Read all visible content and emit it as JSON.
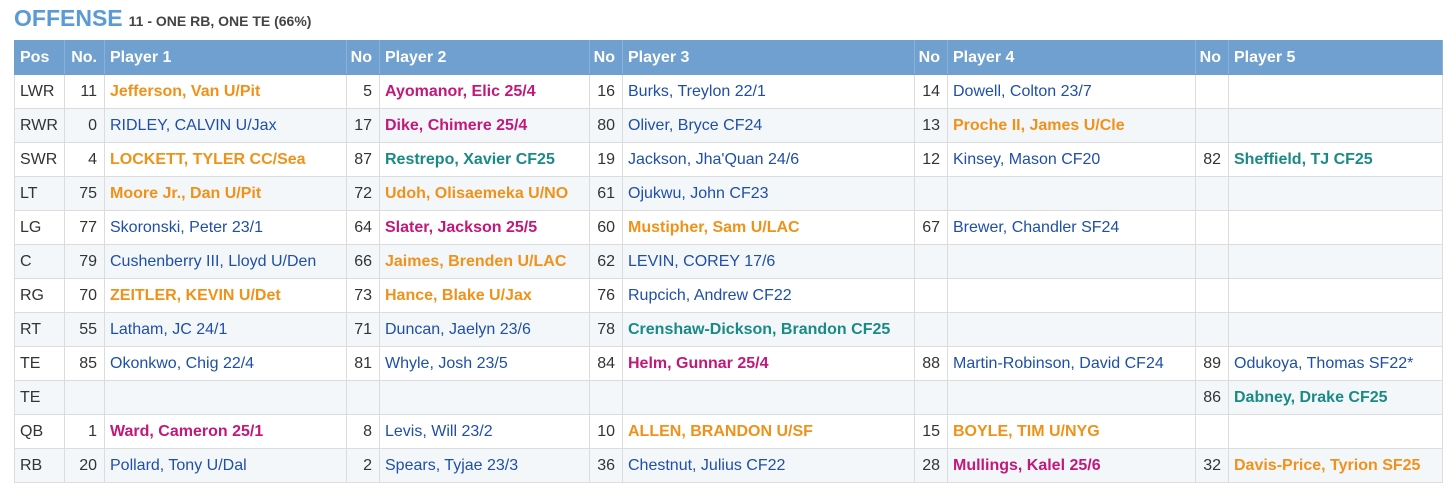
{
  "header": {
    "title": "OFFENSE",
    "subtitle": "11 - ONE RB, ONE TE (66%)"
  },
  "columns": [
    "Pos",
    "No.",
    "Player 1",
    "No",
    "Player 2",
    "No",
    "Player 3",
    "No",
    "Player 4",
    "No",
    "Player 5"
  ],
  "colors": {
    "blue": "#1f4fa8",
    "orange": "#f0921a",
    "magenta": "#c2187a",
    "teal": "#1a8a85",
    "header_bg": "#6fa0cf"
  },
  "rows": [
    {
      "pos": "LWR",
      "players": [
        {
          "no": "11",
          "name": "Jefferson, Van U/Pit",
          "color": "orange"
        },
        {
          "no": "5",
          "name": "Ayomanor, Elic 25/4",
          "color": "magenta"
        },
        {
          "no": "16",
          "name": "Burks, Treylon 22/1",
          "color": "blue"
        },
        {
          "no": "14",
          "name": "Dowell, Colton 23/7",
          "color": "blue"
        },
        {
          "no": "",
          "name": "",
          "color": "blue"
        }
      ]
    },
    {
      "pos": "RWR",
      "players": [
        {
          "no": "0",
          "name": "RIDLEY, CALVIN U/Jax",
          "color": "blue"
        },
        {
          "no": "17",
          "name": "Dike, Chimere 25/4",
          "color": "magenta"
        },
        {
          "no": "80",
          "name": "Oliver, Bryce CF24",
          "color": "blue"
        },
        {
          "no": "13",
          "name": "Proche II, James U/Cle",
          "color": "orange"
        },
        {
          "no": "",
          "name": "",
          "color": "blue"
        }
      ]
    },
    {
      "pos": "SWR",
      "players": [
        {
          "no": "4",
          "name": "LOCKETT, TYLER CC/Sea",
          "color": "orange"
        },
        {
          "no": "87",
          "name": "Restrepo, Xavier CF25",
          "color": "teal"
        },
        {
          "no": "19",
          "name": "Jackson, Jha'Quan 24/6",
          "color": "blue"
        },
        {
          "no": "12",
          "name": "Kinsey, Mason CF20",
          "color": "blue"
        },
        {
          "no": "82",
          "name": "Sheffield, TJ CF25",
          "color": "teal"
        }
      ]
    },
    {
      "pos": "LT",
      "players": [
        {
          "no": "75",
          "name": "Moore Jr., Dan U/Pit",
          "color": "orange"
        },
        {
          "no": "72",
          "name": "Udoh, Olisaemeka U/NO",
          "color": "orange"
        },
        {
          "no": "61",
          "name": "Ojukwu, John CF23",
          "color": "blue"
        },
        {
          "no": "",
          "name": "",
          "color": "blue"
        },
        {
          "no": "",
          "name": "",
          "color": "blue"
        }
      ]
    },
    {
      "pos": "LG",
      "players": [
        {
          "no": "77",
          "name": "Skoronski, Peter 23/1",
          "color": "blue"
        },
        {
          "no": "64",
          "name": "Slater, Jackson 25/5",
          "color": "magenta"
        },
        {
          "no": "60",
          "name": "Mustipher, Sam U/LAC",
          "color": "orange"
        },
        {
          "no": "67",
          "name": "Brewer, Chandler SF24",
          "color": "blue"
        },
        {
          "no": "",
          "name": "",
          "color": "blue"
        }
      ]
    },
    {
      "pos": "C",
      "players": [
        {
          "no": "79",
          "name": "Cushenberry III, Lloyd U/Den",
          "color": "blue"
        },
        {
          "no": "66",
          "name": "Jaimes, Brenden U/LAC",
          "color": "orange"
        },
        {
          "no": "62",
          "name": "LEVIN, COREY 17/6",
          "color": "blue"
        },
        {
          "no": "",
          "name": "",
          "color": "blue"
        },
        {
          "no": "",
          "name": "",
          "color": "blue"
        }
      ]
    },
    {
      "pos": "RG",
      "players": [
        {
          "no": "70",
          "name": "ZEITLER, KEVIN U/Det",
          "color": "orange"
        },
        {
          "no": "73",
          "name": "Hance, Blake U/Jax",
          "color": "orange"
        },
        {
          "no": "76",
          "name": "Rupcich, Andrew CF22",
          "color": "blue"
        },
        {
          "no": "",
          "name": "",
          "color": "blue"
        },
        {
          "no": "",
          "name": "",
          "color": "blue"
        }
      ]
    },
    {
      "pos": "RT",
      "players": [
        {
          "no": "55",
          "name": "Latham, JC 24/1",
          "color": "blue"
        },
        {
          "no": "71",
          "name": "Duncan, Jaelyn 23/6",
          "color": "blue"
        },
        {
          "no": "78",
          "name": "Crenshaw-Dickson, Brandon CF25",
          "color": "teal"
        },
        {
          "no": "",
          "name": "",
          "color": "blue"
        },
        {
          "no": "",
          "name": "",
          "color": "blue"
        }
      ]
    },
    {
      "pos": "TE",
      "players": [
        {
          "no": "85",
          "name": "Okonkwo, Chig 22/4",
          "color": "blue"
        },
        {
          "no": "81",
          "name": "Whyle, Josh 23/5",
          "color": "blue"
        },
        {
          "no": "84",
          "name": "Helm, Gunnar 25/4",
          "color": "magenta"
        },
        {
          "no": "88",
          "name": "Martin-Robinson, David CF24",
          "color": "blue"
        },
        {
          "no": "89",
          "name": "Odukoya, Thomas SF22*",
          "color": "blue"
        }
      ]
    },
    {
      "pos": "TE",
      "players": [
        {
          "no": "",
          "name": "",
          "color": "blue"
        },
        {
          "no": "",
          "name": "",
          "color": "blue"
        },
        {
          "no": "",
          "name": "",
          "color": "blue"
        },
        {
          "no": "",
          "name": "",
          "color": "blue"
        },
        {
          "no": "86",
          "name": "Dabney, Drake CF25",
          "color": "teal"
        }
      ]
    },
    {
      "pos": "QB",
      "players": [
        {
          "no": "1",
          "name": "Ward, Cameron 25/1",
          "color": "magenta"
        },
        {
          "no": "8",
          "name": "Levis, Will 23/2",
          "color": "blue"
        },
        {
          "no": "10",
          "name": "ALLEN, BRANDON U/SF",
          "color": "orange"
        },
        {
          "no": "15",
          "name": "BOYLE, TIM U/NYG",
          "color": "orange"
        },
        {
          "no": "",
          "name": "",
          "color": "blue"
        }
      ]
    },
    {
      "pos": "RB",
      "players": [
        {
          "no": "20",
          "name": "Pollard, Tony U/Dal",
          "color": "blue"
        },
        {
          "no": "2",
          "name": "Spears, Tyjae 23/3",
          "color": "blue"
        },
        {
          "no": "36",
          "name": "Chestnut, Julius CF22",
          "color": "blue"
        },
        {
          "no": "28",
          "name": "Mullings, Kalel 25/6",
          "color": "magenta"
        },
        {
          "no": "32",
          "name": "Davis-Price, Tyrion SF25",
          "color": "orange"
        }
      ]
    }
  ]
}
